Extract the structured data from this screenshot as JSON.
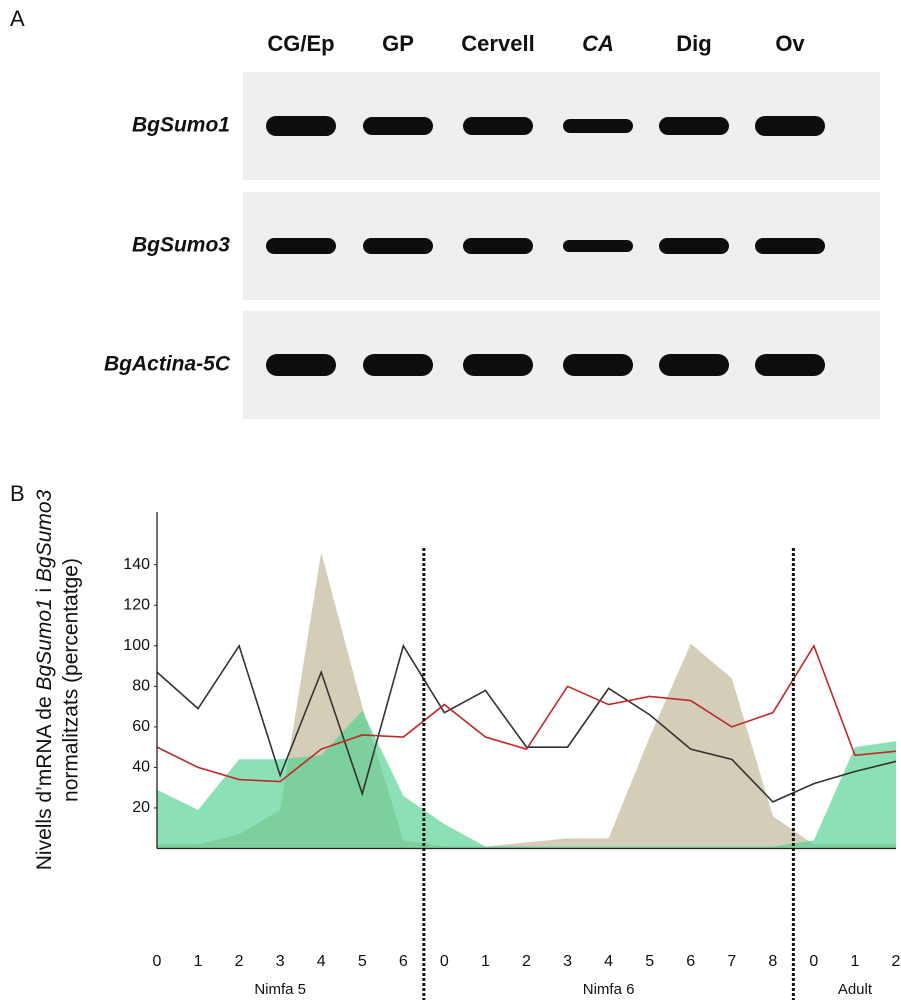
{
  "panel_a": {
    "letter": "A",
    "lanes": [
      "CG/Ep",
      "GP",
      "Cervell",
      "CA",
      "Dig",
      "Ov"
    ],
    "italic_lanes": [
      "CA"
    ],
    "genes": [
      "BgSumo1",
      "BgSumo3",
      "BgActina-5C"
    ]
  },
  "chart_data": {
    "type": "line",
    "panel_letter": "B",
    "ylabel": {
      "line1": [
        "Nivells d’mRNA de ",
        "BgSumo1",
        " i ",
        "BgSumo3"
      ],
      "line2": "normalitzats (percentatge)"
    },
    "groups": [
      {
        "label": "Nimfa 5",
        "categories": [
          "0",
          "1",
          "2",
          "3",
          "4",
          "5",
          "6"
        ]
      },
      {
        "label": "Nimfa 6",
        "categories": [
          "0",
          "1",
          "2",
          "3",
          "4",
          "5",
          "6",
          "7",
          "8"
        ]
      },
      {
        "label": "Adult",
        "categories": [
          "0",
          "1",
          "2"
        ]
      }
    ],
    "ylim": [
      0,
      166
    ],
    "yticks": [
      20,
      40,
      60,
      80,
      100,
      120,
      140
    ],
    "series": [
      {
        "style": "area",
        "color": "#bdb394",
        "values": [
          2,
          2,
          7,
          19,
          146,
          70,
          4,
          1,
          1,
          3,
          5,
          5,
          55,
          101,
          84,
          16,
          2,
          2,
          2
        ]
      },
      {
        "style": "area",
        "color": "#4fcf8e",
        "values": [
          29,
          19,
          44,
          44,
          46,
          68,
          26,
          12,
          1,
          1,
          1,
          1,
          1,
          1,
          1,
          1,
          4,
          50,
          53
        ]
      },
      {
        "style": "line",
        "color": "#333333",
        "values": [
          87,
          69,
          100,
          36,
          87,
          27,
          100,
          67,
          78,
          50,
          50,
          79,
          66,
          49,
          44,
          23,
          32,
          38,
          43
        ]
      },
      {
        "style": "line",
        "color": "#c0282a",
        "values": [
          50,
          40,
          34,
          33,
          49,
          56,
          55,
          71,
          55,
          49,
          80,
          71,
          75,
          73,
          60,
          67,
          100,
          46,
          48
        ]
      }
    ]
  }
}
